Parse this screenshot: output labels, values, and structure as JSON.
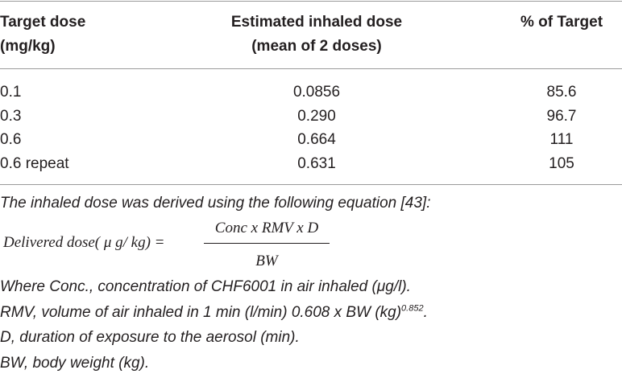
{
  "table": {
    "header": [
      [
        "Target dose",
        "(mg/kg)"
      ],
      [
        "Estimated inhaled dose",
        "(mean of 2 doses)"
      ],
      [
        "% of Target"
      ]
    ],
    "rows": [
      [
        "0.1",
        "0.0856",
        "85.6"
      ],
      [
        "0.3",
        "0.290",
        "96.7"
      ],
      [
        "0.6",
        "0.664",
        "111"
      ],
      [
        "0.6 repeat",
        "0.631",
        "105"
      ]
    ]
  },
  "notes": {
    "intro": "The inhaled dose was derived using the following equation [43]:",
    "equation": {
      "lhs": "Delivered dose( μ g/ kg) =",
      "numerator": "Conc x RMV x D",
      "denominator": "BW"
    },
    "definitions": [
      {
        "text": "Where Conc., concentration of CHF6001 in air inhaled (μg/l)."
      },
      {
        "text": "RMV, volume of air inhaled in 1 min (l/min) 0.608 x BW (kg)",
        "sup": "0.852",
        "tail": "."
      },
      {
        "text": "D, duration of exposure to the aerosol (min)."
      },
      {
        "text": "BW, body weight (kg)."
      }
    ]
  }
}
